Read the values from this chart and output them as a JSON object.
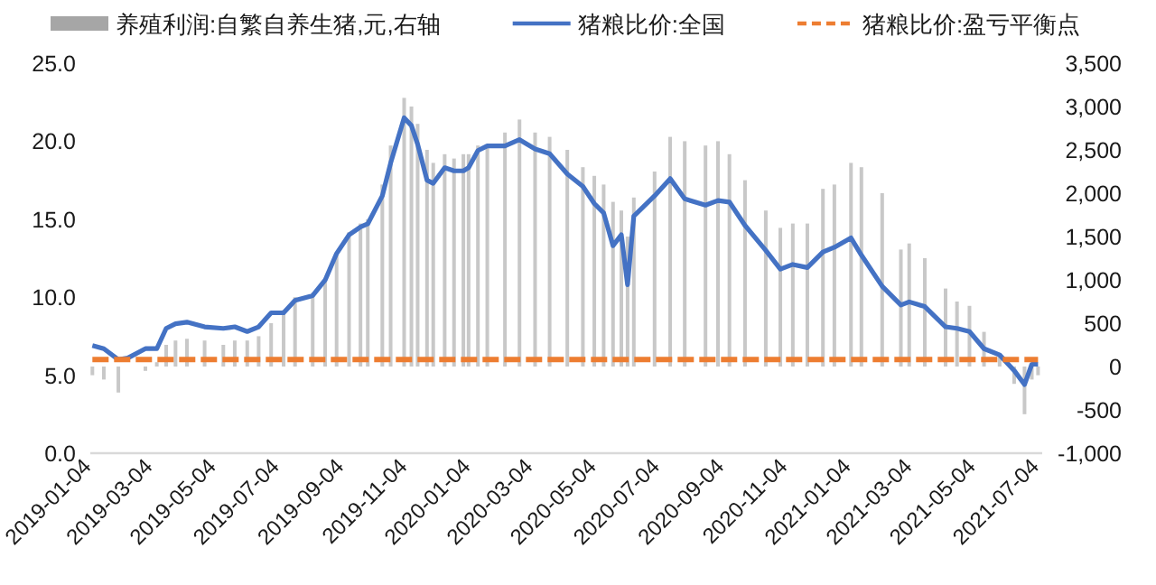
{
  "chart_data": {
    "type": "line",
    "legend": "top",
    "grid": false,
    "xlim": [
      "2019-01-02",
      "2021-07-06"
    ],
    "xticks": [
      "2019-01-04",
      "2019-03-04",
      "2019-05-04",
      "2019-07-04",
      "2019-09-04",
      "2019-11-04",
      "2020-01-04",
      "2020-03-04",
      "2020-05-04",
      "2020-07-04",
      "2020-09-04",
      "2020-11-04",
      "2021-01-04",
      "2021-03-04",
      "2021-05-04",
      "2021-07-04"
    ],
    "ylim": [
      0,
      25
    ],
    "yticks": [
      {
        "value": 0,
        "label": "0.0"
      },
      {
        "value": 5,
        "label": "5.0"
      },
      {
        "value": 10,
        "label": "10.0"
      },
      {
        "value": 15,
        "label": "15.0"
      },
      {
        "value": 20,
        "label": "20.0"
      },
      {
        "value": 25,
        "label": "25.0"
      }
    ],
    "y2lim": [
      -1000,
      3500
    ],
    "y2ticks": [
      {
        "value": -1000,
        "label": "-1,000"
      },
      -500,
      0,
      500,
      {
        "value": 1000,
        "label": "1,000"
      },
      {
        "value": 1500,
        "label": "1,500"
      },
      {
        "value": 2000,
        "label": "2,000"
      },
      {
        "value": 2500,
        "label": "2,500"
      },
      {
        "value": 3000,
        "label": "3,000"
      },
      {
        "value": 3500,
        "label": "3,500"
      }
    ],
    "series": [
      {
        "name": "养殖利润:自繁自养生猪,元,右轴",
        "type": "bar",
        "axis": "y2",
        "color": "#c8c8c8",
        "x": [
          "2019-01-04",
          "2019-01-15",
          "2019-01-29",
          "2019-02-07",
          "2019-02-24",
          "2019-03-07",
          "2019-03-16",
          "2019-03-25",
          "2019-04-05",
          "2019-04-22",
          "2019-05-10",
          "2019-05-21",
          "2019-06-02",
          "2019-06-13",
          "2019-06-25",
          "2019-07-07",
          "2019-07-18",
          "2019-08-04",
          "2019-08-16",
          "2019-08-27",
          "2019-09-08",
          "2019-09-19",
          "2019-09-26",
          "2019-10-10",
          "2019-10-18",
          "2019-10-31",
          "2019-11-07",
          "2019-11-13",
          "2019-11-22",
          "2019-11-28",
          "2019-12-09",
          "2019-12-18",
          "2019-12-27",
          "2020-01-01",
          "2020-01-10",
          "2020-01-19",
          "2020-02-05",
          "2020-02-19",
          "2020-03-05",
          "2020-03-19",
          "2020-04-05",
          "2020-04-20",
          "2020-05-01",
          "2020-05-10",
          "2020-05-19",
          "2020-05-27",
          "2020-06-02",
          "2020-06-08",
          "2020-06-28",
          "2020-07-13",
          "2020-07-27",
          "2020-08-16",
          "2020-08-28",
          "2020-09-08",
          "2020-09-23",
          "2020-10-13",
          "2020-10-27",
          "2020-11-08",
          "2020-11-22",
          "2020-12-07",
          "2020-12-18",
          "2021-01-03",
          "2021-01-13",
          "2021-02-02",
          "2021-02-20",
          "2021-02-28",
          "2021-03-15",
          "2021-04-04",
          "2021-04-15",
          "2021-04-27",
          "2021-05-11",
          "2021-05-26",
          "2021-06-09",
          "2021-06-19",
          "2021-06-26",
          "2021-07-02"
        ],
        "values": [
          -100,
          -150,
          -300,
          null,
          -50,
          50,
          250,
          300,
          320,
          300,
          250,
          300,
          300,
          350,
          500,
          650,
          800,
          850,
          1000,
          1300,
          1550,
          1650,
          1700,
          2100,
          2550,
          3100,
          3000,
          2800,
          2500,
          2350,
          2450,
          2400,
          2450,
          2450,
          2550,
          2550,
          2700,
          2850,
          2700,
          2650,
          2500,
          2300,
          2200,
          2100,
          1900,
          1800,
          1500,
          1950,
          2250,
          2650,
          2600,
          2550,
          2600,
          2450,
          2150,
          1800,
          1600,
          1650,
          1650,
          2050,
          2100,
          2350,
          2300,
          2000,
          1350,
          1420,
          1250,
          900,
          750,
          700,
          400,
          150,
          -200,
          -550,
          -150,
          -100
        ]
      },
      {
        "name": "猪粮比价:全国",
        "color": "#4472c4",
        "x": [
          "2019-01-04",
          "2019-01-15",
          "2019-01-29",
          "2019-02-07",
          "2019-02-24",
          "2019-03-07",
          "2019-03-16",
          "2019-03-25",
          "2019-04-05",
          "2019-04-22",
          "2019-05-10",
          "2019-05-21",
          "2019-06-02",
          "2019-06-13",
          "2019-06-25",
          "2019-07-07",
          "2019-07-18",
          "2019-08-04",
          "2019-08-16",
          "2019-08-27",
          "2019-09-08",
          "2019-09-19",
          "2019-09-26",
          "2019-10-10",
          "2019-10-18",
          "2019-10-31",
          "2019-11-07",
          "2019-11-13",
          "2019-11-22",
          "2019-11-28",
          "2019-12-09",
          "2019-12-18",
          "2019-12-27",
          "2020-01-01",
          "2020-01-10",
          "2020-01-19",
          "2020-02-05",
          "2020-02-19",
          "2020-03-05",
          "2020-03-19",
          "2020-04-05",
          "2020-04-20",
          "2020-05-01",
          "2020-05-10",
          "2020-05-19",
          "2020-05-27",
          "2020-06-02",
          "2020-06-08",
          "2020-06-28",
          "2020-07-13",
          "2020-07-27",
          "2020-08-16",
          "2020-08-28",
          "2020-09-08",
          "2020-09-23",
          "2020-10-13",
          "2020-10-27",
          "2020-11-08",
          "2020-11-22",
          "2020-12-07",
          "2020-12-18",
          "2021-01-03",
          "2021-01-13",
          "2021-02-02",
          "2021-02-20",
          "2021-02-28",
          "2021-03-15",
          "2021-04-04",
          "2021-04-15",
          "2021-04-27",
          "2021-05-11",
          "2021-05-26",
          "2021-06-09",
          "2021-06-19",
          "2021-06-26",
          "2021-07-02"
        ],
        "values": [
          6.9,
          6.7,
          6.0,
          6.1,
          6.7,
          6.7,
          8.0,
          8.3,
          8.4,
          8.1,
          8.0,
          8.1,
          7.8,
          8.1,
          9.0,
          9.0,
          9.8,
          10.1,
          11.1,
          12.8,
          14.0,
          14.5,
          14.7,
          16.5,
          18.6,
          21.5,
          21.0,
          19.8,
          17.5,
          17.3,
          18.3,
          18.1,
          18.1,
          18.3,
          19.4,
          19.7,
          19.7,
          20.1,
          19.5,
          19.2,
          17.9,
          17.1,
          16.0,
          15.4,
          13.3,
          14.0,
          10.8,
          15.2,
          16.5,
          17.6,
          16.3,
          15.9,
          16.2,
          16.1,
          14.6,
          13.0,
          11.8,
          12.1,
          11.9,
          12.9,
          13.2,
          13.8,
          12.7,
          10.7,
          9.5,
          9.7,
          9.4,
          8.1,
          8.0,
          7.8,
          6.7,
          6.3,
          5.3,
          4.4,
          5.7,
          5.7
        ]
      },
      {
        "name": "猪粮比价:盈亏平衡点",
        "color": "#ed7d31",
        "line_style": "dashed",
        "x": [
          "2019-01-04",
          "2021-07-02"
        ],
        "values": [
          6.0,
          6.0
        ]
      }
    ]
  }
}
